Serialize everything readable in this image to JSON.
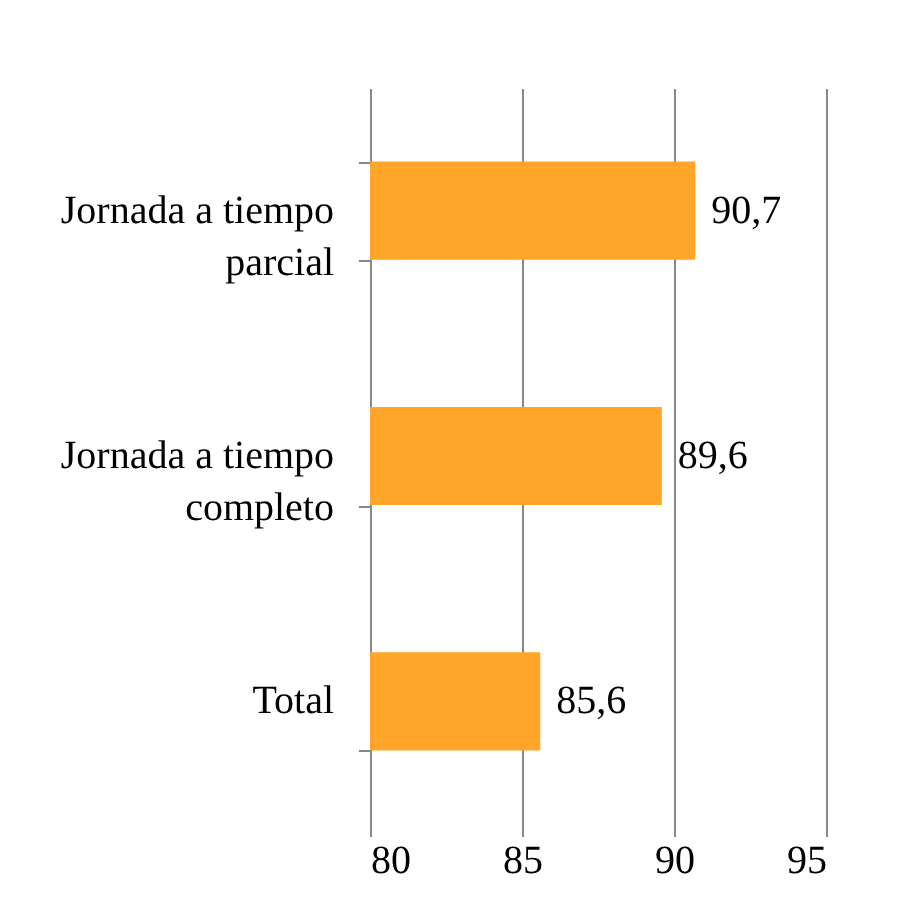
{
  "chart_data": {
    "type": "bar",
    "orientation": "horizontal",
    "categories": [
      "Jornada a tiempo parcial",
      "Jornada a tiempo completo",
      "Total"
    ],
    "values": [
      90.7,
      89.6,
      85.6
    ],
    "value_labels": [
      "90,7",
      "89,6",
      "85,6"
    ],
    "color": "#ffa529",
    "xlim": [
      80,
      95
    ],
    "xticks": [
      80,
      85,
      90,
      95
    ],
    "grid": "x"
  }
}
